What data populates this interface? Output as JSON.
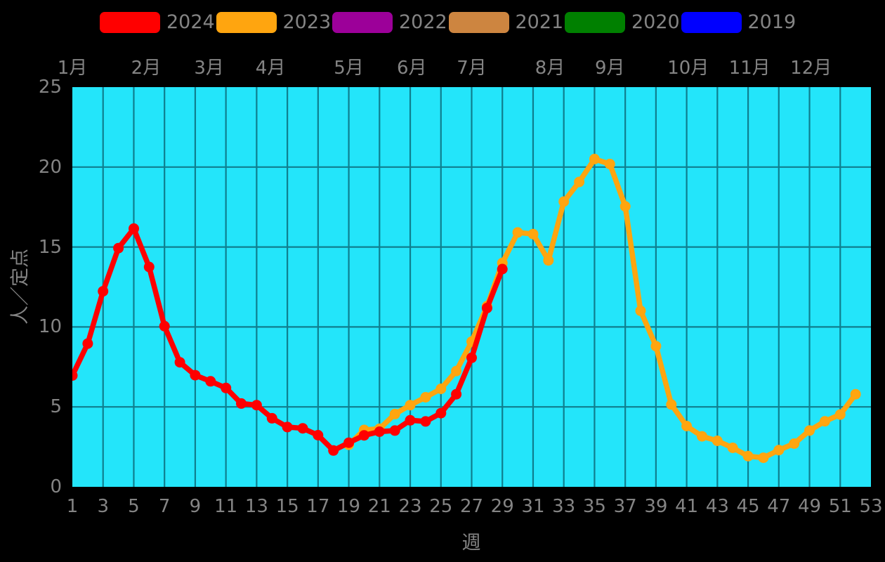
{
  "page": {
    "background": "#000000"
  },
  "legend": {
    "items": [
      {
        "label": "2024",
        "color": "#ff0000"
      },
      {
        "label": "2023",
        "color": "#ffa50f"
      },
      {
        "label": "2022",
        "color": "#9c0099"
      },
      {
        "label": "2021",
        "color": "#cd8540"
      },
      {
        "label": "2020",
        "color": "#008000"
      },
      {
        "label": "2019",
        "color": "#0000ff"
      }
    ]
  },
  "chart_data": {
    "type": "line",
    "title": "",
    "xlabel": "週",
    "ylabel": "人／定点",
    "xlim": [
      1,
      53
    ],
    "ylim": [
      0,
      25
    ],
    "x_ticks": [
      1,
      3,
      5,
      7,
      9,
      11,
      13,
      15,
      17,
      19,
      21,
      23,
      25,
      27,
      29,
      31,
      33,
      35,
      37,
      39,
      41,
      43,
      45,
      47,
      49,
      51,
      53
    ],
    "y_ticks": [
      0,
      5,
      10,
      15,
      20,
      25
    ],
    "month_axis": {
      "labels": [
        "1月",
        "2月",
        "3月",
        "4月",
        "5月",
        "6月",
        "7月",
        "8月",
        "9月",
        "10月",
        "11月",
        "12月"
      ],
      "week_positions": [
        1.0,
        5.8,
        9.9,
        13.9,
        19.0,
        23.1,
        27.0,
        32.1,
        36.0,
        41.1,
        45.1,
        49.1
      ]
    },
    "grid": true,
    "legend_position": "top",
    "plot_bg_color": "#23e5fa",
    "grid_color": "#0f7e8e",
    "tick_text_color": "#848484",
    "series": [
      {
        "name": "2023",
        "color": "#ffa50f",
        "start_week": 19,
        "values": [
          2.63,
          3.56,
          3.63,
          4.55,
          5.11,
          5.6,
          6.13,
          7.24,
          9.08,
          11.3,
          14.0,
          15.91,
          15.81,
          14.16,
          17.84,
          19.07,
          20.5,
          20.19,
          17.54,
          11.01,
          8.8,
          5.15,
          3.8,
          3.16,
          2.88,
          2.44,
          1.92,
          1.82,
          2.3,
          2.7,
          3.52,
          4.1,
          4.52,
          5.79
        ]
      },
      {
        "name": "2024",
        "color": "#ff0000",
        "start_week": 1,
        "values": [
          6.96,
          8.96,
          12.23,
          14.93,
          16.15,
          13.75,
          10.05,
          7.79,
          6.98,
          6.6,
          6.18,
          5.21,
          5.11,
          4.29,
          3.74,
          3.66,
          3.23,
          2.27,
          2.76,
          3.22,
          3.45,
          3.52,
          4.16,
          4.09,
          4.61,
          5.79,
          8.07,
          11.18,
          13.62
        ]
      },
      {
        "name": "2022",
        "color": "#9c0099",
        "start_week": null,
        "values": []
      },
      {
        "name": "2021",
        "color": "#cd8540",
        "start_week": null,
        "values": []
      },
      {
        "name": "2020",
        "color": "#008000",
        "start_week": null,
        "values": []
      },
      {
        "name": "2019",
        "color": "#0000ff",
        "start_week": null,
        "values": []
      }
    ]
  }
}
